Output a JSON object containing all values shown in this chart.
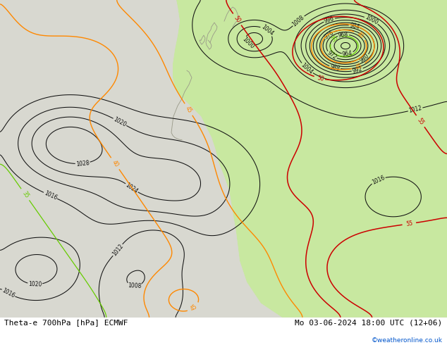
{
  "title_left": "Theta-e 700hPa [hPa] ECMWF",
  "title_right": "Mo 03-06-2024 18:00 UTC (12+06)",
  "copyright": "©weatheronline.co.uk",
  "fig_width": 6.34,
  "fig_height": 4.9,
  "dpi": 100,
  "bg_gray": "#d8d8d0",
  "bg_green": "#c8e8a0",
  "bg_green2": "#b8d890",
  "ocean_color": "#c0d8e8",
  "contour_black": "#111111",
  "contour_cyan": "#00aacc",
  "contour_orange": "#ff8800",
  "contour_red": "#cc0000",
  "contour_yellow": "#bbbb00",
  "contour_green": "#66cc00",
  "label_fs": 5.5,
  "title_fs": 8.0
}
